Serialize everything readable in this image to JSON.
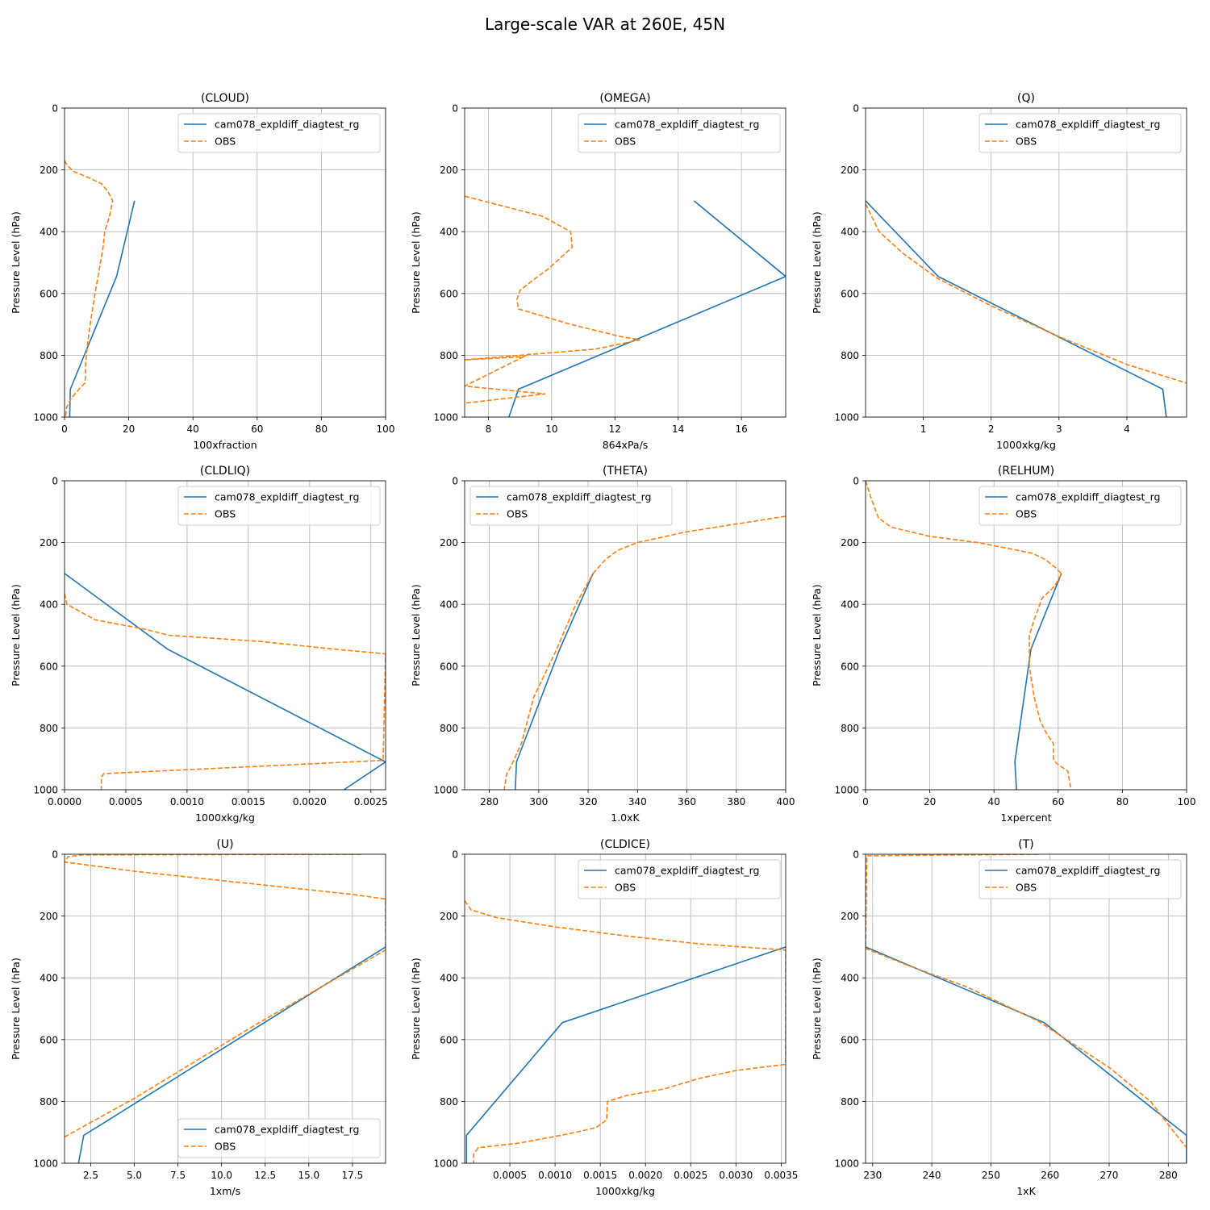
{
  "chart_data": {
    "title": "Large-scale VAR at 260E, 45N",
    "colors": {
      "model": "#1f77b4",
      "obs": "#ff7f0e"
    },
    "panels": [
      {
        "type": "line",
        "title": "(CLOUD)",
        "xlabel": "100xfraction",
        "ylabel": "Pressure Level (hPa)",
        "xlim": [
          0,
          100
        ],
        "ylim": [
          1000,
          0
        ],
        "yticks": [
          0,
          200,
          400,
          600,
          800,
          1000
        ],
        "xticks": [
          0,
          20,
          40,
          60,
          80,
          100
        ],
        "xtick_labels": [
          "0",
          "20",
          "40",
          "60",
          "80",
          "100"
        ],
        "legend": "top-right",
        "series": [
          {
            "name": "cam078_expldiff_diagtest_rg",
            "style": "solid",
            "x": [
              21.8,
              16.2,
              1.8,
              1.6
            ],
            "y": [
              300,
              545,
              910,
              1000
            ]
          },
          {
            "name": "OBS",
            "style": "dashed",
            "x": [
              0,
              0.8,
              2.8,
              7.5,
              11.5,
              13.5,
              15.0,
              14.0,
              12.5,
              12.0,
              11.2,
              9.5,
              8.0,
              7.2,
              6.8,
              6.5,
              6.5,
              6.3,
              4.5,
              2.0,
              0.6,
              0.3
            ],
            "y": [
              170,
              185,
              205,
              225,
              245,
              270,
              300,
              350,
              400,
              450,
              500,
              600,
              700,
              760,
              800,
              840,
              870,
              890,
              910,
              940,
              970,
              1000
            ]
          }
        ]
      },
      {
        "type": "line",
        "title": "(OMEGA)",
        "xlabel": "864xPa/s",
        "ylabel": "Pressure Level (hPa)",
        "xlim": [
          7.25,
          17.4
        ],
        "ylim": [
          1000,
          0
        ],
        "yticks": [
          0,
          200,
          400,
          600,
          800,
          1000
        ],
        "xticks": [
          8,
          10,
          12,
          14,
          16
        ],
        "xtick_labels": [
          "8",
          "10",
          "12",
          "14",
          "16"
        ],
        "legend": "top-right",
        "series": [
          {
            "name": "cam078_expldiff_diagtest_rg",
            "style": "solid",
            "x": [
              14.5,
              17.4,
              8.95,
              8.65
            ],
            "y": [
              300,
              545,
              910,
              1000
            ]
          },
          {
            "name": "OBS",
            "style": "dashed",
            "x": [
              7.25,
              9.7,
              10.6,
              10.65,
              9.9,
              9.5,
              9.0,
              8.9,
              8.95,
              10.6,
              12.2,
              12.8,
              11.4,
              7.25,
              9.1,
              9.3,
              7.25,
              9.8,
              7.25
            ],
            "y": [
              285,
              350,
              400,
              450,
              520,
              550,
              590,
              620,
              650,
              700,
              740,
              750,
              780,
              815,
              805,
              795,
              900,
              925,
              955
            ]
          }
        ]
      },
      {
        "type": "line",
        "title": "(Q)",
        "xlabel": "1000xkg/kg",
        "ylabel": "Pressure Level (hPa)",
        "xlim": [
          0.15,
          4.88
        ],
        "ylim": [
          1000,
          0
        ],
        "yticks": [
          0,
          200,
          400,
          600,
          800,
          1000
        ],
        "xticks": [
          1,
          2,
          3,
          4
        ],
        "xtick_labels": [
          "1",
          "2",
          "3",
          "4"
        ],
        "legend": "top-right",
        "series": [
          {
            "name": "cam078_expldiff_diagtest_rg",
            "style": "solid",
            "x": [
              0.15,
              1.22,
              4.53,
              4.58
            ],
            "y": [
              300,
              545,
              910,
              1000
            ]
          },
          {
            "name": "OBS",
            "style": "dashed",
            "x": [
              0.15,
              0.35,
              0.7,
              1.2,
              2.0,
              3.0,
              4.0,
              4.88
            ],
            "y": [
              310,
              400,
              470,
              550,
              640,
              740,
              830,
              890
            ]
          }
        ]
      },
      {
        "type": "line",
        "title": "(CLDLIQ)",
        "xlabel": "1000xkg/kg",
        "ylabel": "Pressure Level (hPa)",
        "xlim": [
          0,
          0.00262
        ],
        "ylim": [
          1000,
          0
        ],
        "yticks": [
          0,
          200,
          400,
          600,
          800,
          1000
        ],
        "xticks": [
          0,
          0.0005,
          0.001,
          0.0015,
          0.002,
          0.0025
        ],
        "xtick_labels": [
          "0.0000",
          "0.0005",
          "0.0010",
          "0.0015",
          "0.0020",
          "0.0025"
        ],
        "legend": "top-right",
        "series": [
          {
            "name": "cam078_expldiff_diagtest_rg",
            "style": "solid",
            "x": [
              0,
              0.00084,
              0.00262,
              0.00228
            ],
            "y": [
              300,
              545,
              910,
              1000
            ]
          },
          {
            "name": "OBS",
            "style": "dashed",
            "x": [
              0,
              2e-05,
              0.00025,
              0.00065,
              0.00085,
              0.0016,
              0.0022,
              0.00262,
              0.0026,
              0.00032,
              0.0003,
              0.0003
            ],
            "y": [
              365,
              400,
              450,
              480,
              500,
              520,
              545,
              560,
              905,
              948,
              960,
              1000
            ]
          }
        ]
      },
      {
        "type": "line",
        "title": "(THETA)",
        "xlabel": "1.0xK",
        "ylabel": "Pressure Level (hPa)",
        "xlim": [
          270,
          400
        ],
        "ylim": [
          1000,
          0
        ],
        "yticks": [
          0,
          200,
          400,
          600,
          800,
          1000
        ],
        "xticks": [
          280,
          300,
          320,
          340,
          360,
          380,
          400
        ],
        "xtick_labels": [
          "280",
          "300",
          "320",
          "340",
          "360",
          "380",
          "400"
        ],
        "legend": "top-left",
        "series": [
          {
            "name": "cam078_expldiff_diagtest_rg",
            "style": "solid",
            "x": [
              322,
              308.5,
              291,
              290.5
            ],
            "y": [
              300,
              545,
              910,
              1000
            ]
          },
          {
            "name": "OBS",
            "style": "dashed",
            "x": [
              400,
              380,
              360,
              340,
              332,
              327,
              322,
              315,
              307,
              298,
              293,
              289,
              287,
              286
            ],
            "y": [
              115,
              140,
              165,
              200,
              225,
              255,
              300,
              400,
              550,
              700,
              850,
              920,
              950,
              1000
            ]
          }
        ]
      },
      {
        "type": "line",
        "title": "(RELHUM)",
        "xlabel": "1xpercent",
        "ylabel": "Pressure Level (hPa)",
        "xlim": [
          0,
          100
        ],
        "ylim": [
          1000,
          0
        ],
        "yticks": [
          0,
          200,
          400,
          600,
          800,
          1000
        ],
        "xticks": [
          0,
          20,
          40,
          60,
          80,
          100
        ],
        "xtick_labels": [
          "0",
          "20",
          "40",
          "60",
          "80",
          "100"
        ],
        "legend": "top-right",
        "series": [
          {
            "name": "cam078_expldiff_diagtest_rg",
            "style": "solid",
            "x": [
              61,
              51.5,
              46.5,
              47
            ],
            "y": [
              300,
              545,
              910,
              1000
            ]
          },
          {
            "name": "OBS",
            "style": "dashed",
            "x": [
              0,
              1.5,
              4,
              8,
              20,
              35,
              45,
              52,
              56,
              59,
              61,
              59,
              55,
              52.5,
              51,
              51,
              52.5,
              54.5,
              56.5,
              58.5,
              58.5,
              59.5,
              63,
              64
            ],
            "y": [
              0,
              50,
              120,
              150,
              180,
              200,
              220,
              235,
              255,
              280,
              300,
              340,
              380,
              450,
              500,
              600,
              700,
              780,
              820,
              850,
              900,
              915,
              940,
              1000
            ]
          }
        ]
      },
      {
        "type": "line",
        "title": "(U)",
        "xlabel": "1xm/s",
        "ylabel": "Pressure Level (hPa)",
        "xlim": [
          1.0,
          19.4
        ],
        "ylim": [
          1000,
          0
        ],
        "yticks": [
          0,
          200,
          400,
          600,
          800,
          1000
        ],
        "xticks": [
          2.5,
          5,
          7.5,
          10,
          12.5,
          15,
          17.5
        ],
        "xtick_labels": [
          "2.5",
          "5.0",
          "7.5",
          "10.0",
          "12.5",
          "15.0",
          "17.5"
        ],
        "legend": "bottom-right",
        "series": [
          {
            "name": "cam078_expldiff_diagtest_rg",
            "style": "solid",
            "x": [
              19.4,
              2.1,
              1.8
            ],
            "y": [
              300,
              910,
              1000
            ]
          },
          {
            "name": "OBS",
            "style": "dashed",
            "x": [
              18.0,
              2.0,
              1.2,
              1.0,
              5.0,
              10.0,
              15.0,
              17.5,
              19.4,
              19.4,
              12.0,
              5.0,
              1.0
            ],
            "y": [
              0,
              2,
              8,
              25,
              55,
              85,
              115,
              130,
              145,
              310,
              550,
              790,
              915
            ]
          }
        ]
      },
      {
        "type": "line",
        "title": "(CLDICE)",
        "xlabel": "1000xkg/kg",
        "ylabel": "Pressure Level (hPa)",
        "xlim": [
          0,
          0.00355
        ],
        "ylim": [
          1000,
          0
        ],
        "yticks": [
          0,
          200,
          400,
          600,
          800,
          1000
        ],
        "xticks": [
          0.0005,
          0.001,
          0.0015,
          0.002,
          0.0025,
          0.003,
          0.0035
        ],
        "xtick_labels": [
          "0.0005",
          "0.0010",
          "0.0015",
          "0.0020",
          "0.0025",
          "0.0030",
          "0.0035"
        ],
        "legend": "top-right",
        "series": [
          {
            "name": "cam078_expldiff_diagtest_rg",
            "style": "solid",
            "x": [
              0.00355,
              0.00108,
              2e-05,
              2e-05
            ],
            "y": [
              300,
              545,
              910,
              1000
            ]
          },
          {
            "name": "OBS",
            "style": "dashed",
            "x": [
              0,
              7e-05,
              0.00035,
              0.001,
              0.0018,
              0.0026,
              0.00355,
              0.00355,
              0.003,
              0.0026,
              0.0022,
              0.0018,
              0.00158,
              0.00157,
              0.00145,
              0.00115,
              0.0006,
              0.00015,
              0.0001,
              0.0001
            ],
            "y": [
              150,
              180,
              205,
              235,
              265,
              290,
              310,
              680,
              700,
              725,
              760,
              780,
              800,
              860,
              885,
              905,
              935,
              950,
              970,
              1000
            ]
          }
        ]
      },
      {
        "type": "line",
        "title": "(T)",
        "xlabel": "1xK",
        "ylabel": "Pressure Level (hPa)",
        "xlim": [
          228.8,
          283.1
        ],
        "ylim": [
          1000,
          0
        ],
        "yticks": [
          0,
          200,
          400,
          600,
          800,
          1000
        ],
        "xticks": [
          230,
          240,
          250,
          260,
          270,
          280
        ],
        "xtick_labels": [
          "230",
          "240",
          "250",
          "260",
          "270",
          "280"
        ],
        "legend": "top-right",
        "series": [
          {
            "name": "cam078_expldiff_diagtest_rg",
            "style": "solid",
            "x": [
              228.8,
              259,
              283.1,
              283.1
            ],
            "y": [
              300,
              545,
              910,
              1000
            ]
          },
          {
            "name": "OBS",
            "style": "dashed",
            "x": [
              258,
              229,
              228.8,
              236,
              246,
              258,
              270,
              277,
              281,
              283.1
            ],
            "y": [
              0,
              5,
              305,
              360,
              430,
              540,
              690,
              800,
              900,
              950
            ]
          }
        ]
      }
    ]
  }
}
